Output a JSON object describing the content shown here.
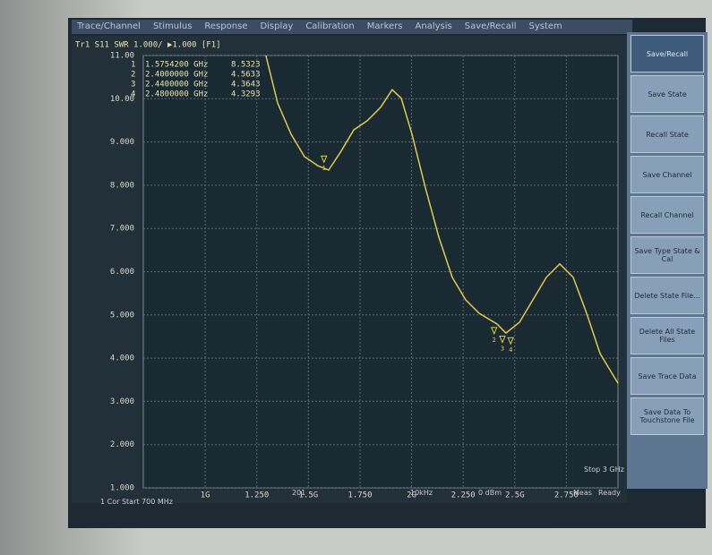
{
  "menu": [
    "Trace/Channel",
    "Stimulus",
    "Response",
    "Display",
    "Calibration",
    "Markers",
    "Analysis",
    "Save/Recall",
    "System"
  ],
  "softkeys": [
    "Save/Recall",
    "Save State",
    "Recall State",
    "Save Channel",
    "Recall Channel",
    "Save Type State & Cal",
    "Delete State File...",
    "Delete All State Files",
    "Save Trace Data",
    "Save Data To Touchstone File"
  ],
  "readout": "Tr1 S11 SWR 1.000/ ▶1.000 [F1]",
  "footer": {
    "start": "1  Cor  Start 700 MHz",
    "stop": "Stop 3 GHz",
    "points": "201",
    "ifbw": "10kHz",
    "power": "0 dBm",
    "status": "Meas",
    "state": "Ready"
  },
  "chart_data": {
    "type": "line",
    "xlim": [
      0.7,
      3
    ],
    "ylim": [
      1,
      11
    ],
    "grid": true,
    "yticks": [
      {
        "value": 1,
        "label": "1.000"
      },
      {
        "value": 2,
        "label": "2.000"
      },
      {
        "value": 3,
        "label": "3.000"
      },
      {
        "value": 4,
        "label": "4.000"
      },
      {
        "value": 5,
        "label": "5.000"
      },
      {
        "value": 6,
        "label": "6.000"
      },
      {
        "value": 7,
        "label": "7.000"
      },
      {
        "value": 8,
        "label": "8.000"
      },
      {
        "value": 9,
        "label": "9.000"
      },
      {
        "value": 10,
        "label": "10.00"
      },
      {
        "value": 11,
        "label": "11.00"
      }
    ],
    "xticks": [
      {
        "value": 1,
        "label": "1G"
      },
      {
        "value": 1.25,
        "label": "1.250"
      },
      {
        "value": 1.5,
        "label": "1.5G"
      },
      {
        "value": 1.75,
        "label": "1.750"
      },
      {
        "value": 2,
        "label": "2G"
      },
      {
        "value": 2.25,
        "label": "2.250"
      },
      {
        "value": 2.5,
        "label": "2.5G"
      },
      {
        "value": 2.75,
        "label": "2.750"
      }
    ],
    "series": [
      {
        "color": "#e2c94a",
        "x": [
          1.294,
          1.351,
          1.416,
          1.481,
          1.546,
          1.598,
          1.655,
          1.72,
          1.785,
          1.85,
          1.906,
          1.95,
          2.002,
          2.067,
          2.132,
          2.197,
          2.262,
          2.327,
          2.414,
          2.457,
          2.523,
          2.588,
          2.653,
          2.718,
          2.783,
          2.848,
          2.913,
          3.0
        ],
        "values": [
          11.0,
          9.9,
          9.18,
          8.66,
          8.45,
          8.35,
          8.76,
          9.28,
          9.49,
          9.8,
          10.21,
          10.01,
          9.18,
          7.94,
          6.8,
          5.87,
          5.35,
          5.04,
          4.79,
          4.58,
          4.83,
          5.35,
          5.87,
          6.18,
          5.87,
          5.04,
          4.11,
          3.42
        ]
      }
    ],
    "markers": {
      "names": [
        "1",
        "2",
        "3",
        "4"
      ],
      "x": [
        {
          "value": 1.57542,
          "label": "1.5754200 GHz"
        },
        {
          "value": 2.4,
          "label": "2.4000000 GHz"
        },
        {
          "value": 2.44,
          "label": "2.4400000 GHz"
        },
        {
          "value": 2.48,
          "label": "2.4800000 GHz"
        }
      ],
      "values": [
        8.5323,
        4.5633,
        4.3643,
        4.3293
      ]
    }
  }
}
